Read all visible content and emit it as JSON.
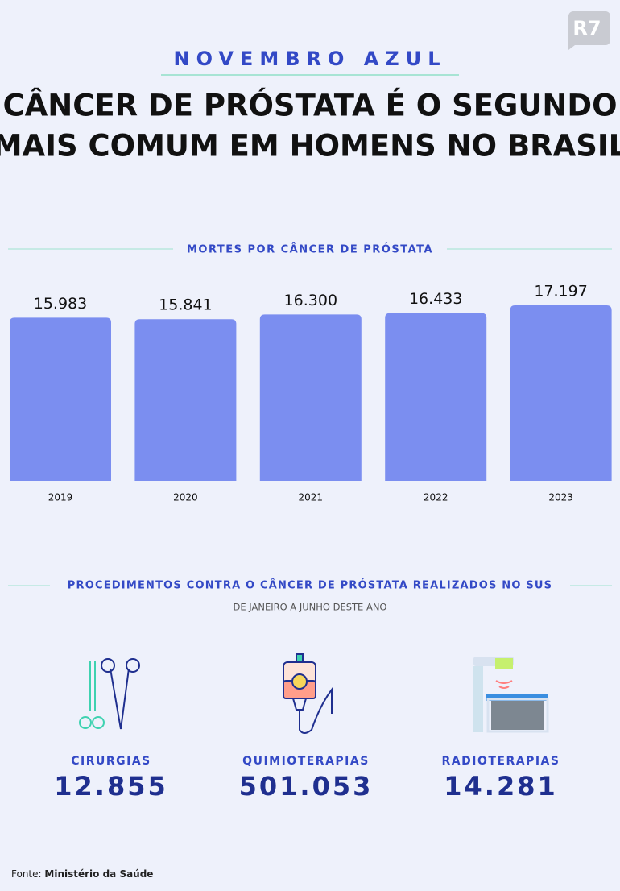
{
  "logo": "R7",
  "header": {
    "kicker": "NOVEMBRO AZUL",
    "title_lines": [
      "CÂNCER DE PRÓSTATA É O SEGUNDO",
      "MAIS COMUM EM HOMENS NO BRASIL"
    ]
  },
  "chart_data": {
    "type": "bar",
    "title": "MORTES POR CÂNCER DE PRÓSTATA",
    "categories": [
      "2019",
      "2020",
      "2021",
      "2022",
      "2023"
    ],
    "values": [
      15983,
      15841,
      16300,
      16433,
      17197
    ],
    "value_labels": [
      "15.983",
      "15.841",
      "16.300",
      "16.433",
      "17.197"
    ],
    "color": "#7b8ef0"
  },
  "procedures": {
    "title": "PROCEDIMENTOS CONTRA O CÂNCER DE PRÓSTATA REALIZADOS NO SUS",
    "subtitle": "DE JANEIRO A JUNHO DESTE ANO",
    "items": [
      {
        "label": "CIRURGIAS",
        "value": "12.855"
      },
      {
        "label": "QUIMIOTERAPIAS",
        "value": "501.053"
      },
      {
        "label": "RADIOTERAPIAS",
        "value": "14.281"
      }
    ]
  },
  "source": {
    "label": "Fonte:",
    "name": "Ministério da Saúde"
  }
}
